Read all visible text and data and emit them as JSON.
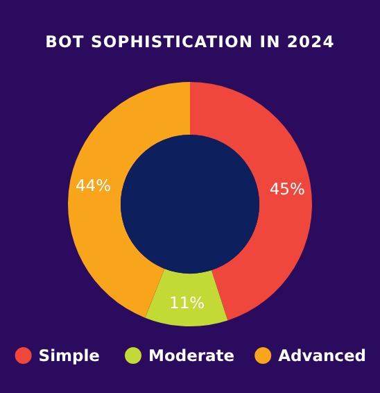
{
  "chart_data": {
    "type": "donut",
    "title": "BOT SOPHISTICATION IN 2024",
    "categories": [
      "Simple",
      "Moderate",
      "Advanced"
    ],
    "values": [
      45,
      11,
      44
    ],
    "colors": [
      "#f0473c",
      "#c3d935",
      "#f8a51c"
    ],
    "value_labels": [
      "45%",
      "11%",
      "44%"
    ],
    "legend": "bottom"
  }
}
